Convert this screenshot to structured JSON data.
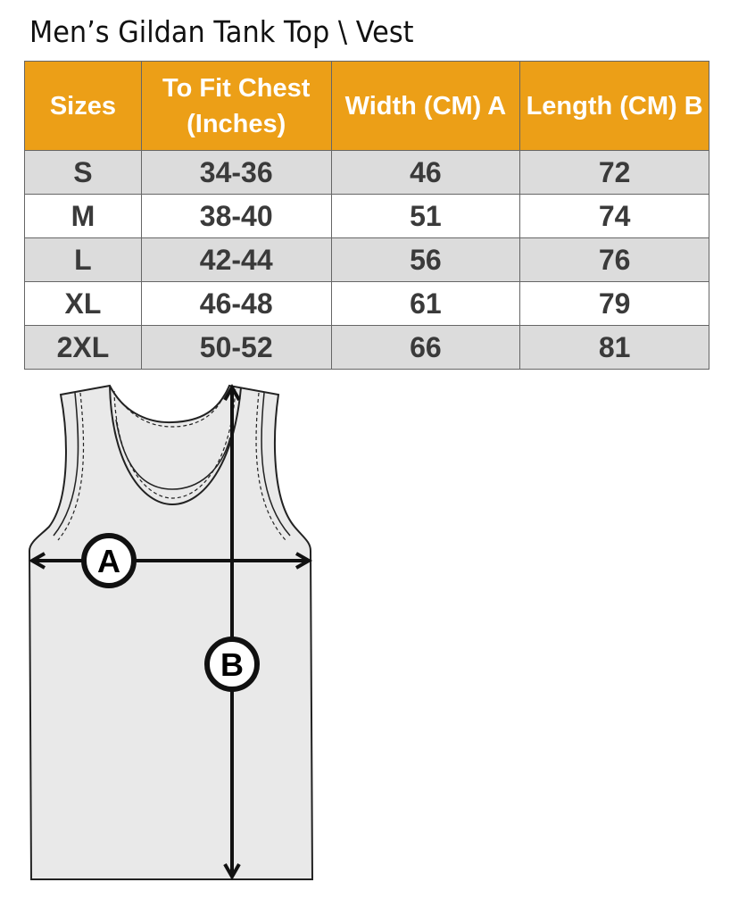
{
  "title": "Men’s Gildan Tank Top \\ Vest",
  "colors": {
    "header_bg": "#ec9f17",
    "row_alt_bg": "#dcdcdc",
    "text": "#3a3a3a"
  },
  "table": {
    "headers": [
      "Sizes",
      "To Fit Chest (Inches)",
      "Width (CM) A",
      "Length  (CM) B"
    ],
    "rows": [
      [
        "S",
        "34-36",
        "46",
        "72"
      ],
      [
        "M",
        "38-40",
        "51",
        "74"
      ],
      [
        "L",
        "42-44",
        "56",
        "76"
      ],
      [
        "XL",
        "46-48",
        "61",
        "79"
      ],
      [
        "2XL",
        "50-52",
        "66",
        "81"
      ]
    ]
  },
  "diagram": {
    "label_a": "A",
    "label_b": "B"
  }
}
